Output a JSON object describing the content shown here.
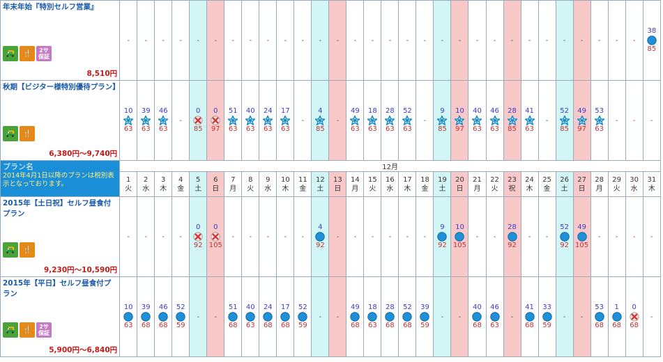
{
  "header": {
    "plan_col_title": "プラン名",
    "plan_col_note": "2014年4月1日以降のプランは税別表示となっております。",
    "month": "12月"
  },
  "days": [
    {
      "d": "1",
      "w": "火",
      "t": ""
    },
    {
      "d": "2",
      "w": "水",
      "t": ""
    },
    {
      "d": "3",
      "w": "木",
      "t": ""
    },
    {
      "d": "4",
      "w": "金",
      "t": ""
    },
    {
      "d": "5",
      "w": "土",
      "t": "sat"
    },
    {
      "d": "6",
      "w": "日",
      "t": "sun"
    },
    {
      "d": "7",
      "w": "月",
      "t": ""
    },
    {
      "d": "8",
      "w": "火",
      "t": ""
    },
    {
      "d": "9",
      "w": "水",
      "t": ""
    },
    {
      "d": "10",
      "w": "木",
      "t": ""
    },
    {
      "d": "11",
      "w": "金",
      "t": ""
    },
    {
      "d": "12",
      "w": "土",
      "t": "sat"
    },
    {
      "d": "13",
      "w": "日",
      "t": "sun"
    },
    {
      "d": "14",
      "w": "月",
      "t": ""
    },
    {
      "d": "15",
      "w": "火",
      "t": ""
    },
    {
      "d": "16",
      "w": "水",
      "t": ""
    },
    {
      "d": "17",
      "w": "木",
      "t": ""
    },
    {
      "d": "18",
      "w": "金",
      "t": ""
    },
    {
      "d": "19",
      "w": "土",
      "t": "sat"
    },
    {
      "d": "20",
      "w": "日",
      "t": "sun"
    },
    {
      "d": "21",
      "w": "月",
      "t": ""
    },
    {
      "d": "22",
      "w": "火",
      "t": ""
    },
    {
      "d": "23",
      "w": "祝",
      "t": "sun"
    },
    {
      "d": "24",
      "w": "木",
      "t": ""
    },
    {
      "d": "25",
      "w": "金",
      "t": ""
    },
    {
      "d": "26",
      "w": "土",
      "t": "sat"
    },
    {
      "d": "27",
      "w": "日",
      "t": "sun"
    },
    {
      "d": "28",
      "w": "月",
      "t": ""
    },
    {
      "d": "29",
      "w": "火",
      "t": ""
    },
    {
      "d": "30",
      "w": "水",
      "t": ""
    },
    {
      "d": "31",
      "w": "木",
      "t": ""
    }
  ],
  "icons": {
    "cart": "🛺",
    "meal": "🍴",
    "guarantee_line1": "2サ",
    "guarantee_line2": "保証"
  },
  "plans": [
    {
      "name": "年末年始『特別セルフ営業』",
      "price": "8,510円",
      "badges": [
        "cart",
        "meal",
        "guarantee"
      ],
      "cells": [
        {
          "s": "dash"
        },
        {
          "s": "dash"
        },
        {
          "s": "dash"
        },
        {
          "s": "dash"
        },
        {
          "s": "dash"
        },
        {
          "s": "dash"
        },
        {
          "s": "dash"
        },
        {
          "s": "dash"
        },
        {
          "s": "dash"
        },
        {
          "s": "dash"
        },
        {
          "s": "dash"
        },
        {
          "s": "dash"
        },
        {
          "s": "dash"
        },
        {
          "s": "dash"
        },
        {
          "s": "dash"
        },
        {
          "s": "dash"
        },
        {
          "s": "dash"
        },
        {
          "s": "dash"
        },
        {
          "s": "dash"
        },
        {
          "s": "dash"
        },
        {
          "s": "dash"
        },
        {
          "s": "dash"
        },
        {
          "s": "dash"
        },
        {
          "s": "dash"
        },
        {
          "s": "dash"
        },
        {
          "s": "dash"
        },
        {
          "s": "dash"
        },
        {
          "s": "dash"
        },
        {
          "s": "dash"
        },
        {
          "s": "dash"
        },
        {
          "s": "circle",
          "top": "38",
          "bot": "85"
        }
      ]
    },
    {
      "name": "秋期【ビジター様特別優待プラン】",
      "price": "6,380円～9,740円",
      "badges": [
        "cart",
        "meal"
      ],
      "cells": [
        {
          "s": "star",
          "top": "10",
          "bot": "63"
        },
        {
          "s": "star",
          "top": "39",
          "bot": "63"
        },
        {
          "s": "star",
          "top": "46",
          "bot": "63"
        },
        {
          "s": "dash"
        },
        {
          "s": "cross",
          "top": "0",
          "bot": "85"
        },
        {
          "s": "cross",
          "top": "0",
          "bot": "97"
        },
        {
          "s": "star",
          "top": "51",
          "bot": "63"
        },
        {
          "s": "star",
          "top": "40",
          "bot": "63"
        },
        {
          "s": "star",
          "top": "24",
          "bot": "63"
        },
        {
          "s": "star",
          "top": "17",
          "bot": "63"
        },
        {
          "s": "dash"
        },
        {
          "s": "star",
          "top": "4",
          "bot": "85"
        },
        {
          "s": "dash"
        },
        {
          "s": "star",
          "top": "49",
          "bot": "63"
        },
        {
          "s": "star",
          "top": "18",
          "bot": "63"
        },
        {
          "s": "star",
          "top": "28",
          "bot": "63"
        },
        {
          "s": "star",
          "top": "52",
          "bot": "63"
        },
        {
          "s": "dash"
        },
        {
          "s": "star",
          "top": "9",
          "bot": "85"
        },
        {
          "s": "star",
          "top": "10",
          "bot": "97"
        },
        {
          "s": "star",
          "top": "40",
          "bot": "63"
        },
        {
          "s": "star",
          "top": "46",
          "bot": "63"
        },
        {
          "s": "star",
          "top": "28",
          "bot": "85"
        },
        {
          "s": "star",
          "top": "41",
          "bot": "63"
        },
        {
          "s": "dash"
        },
        {
          "s": "star",
          "top": "52",
          "bot": "85"
        },
        {
          "s": "star",
          "top": "49",
          "bot": "97"
        },
        {
          "s": "star",
          "top": "53",
          "bot": "63"
        },
        {
          "s": "dash"
        },
        {
          "s": "dash"
        },
        {
          "s": "dash"
        }
      ]
    },
    {
      "name": "2015年【土日祝】セルフ昼食付プラン",
      "price": "9,230円～10,590円",
      "badges": [
        "cart",
        "meal"
      ],
      "cells": [
        {
          "s": "dash"
        },
        {
          "s": "dash"
        },
        {
          "s": "dash"
        },
        {
          "s": "dash"
        },
        {
          "s": "cross",
          "top": "0",
          "bot": "92"
        },
        {
          "s": "cross",
          "top": "0",
          "bot": "105"
        },
        {
          "s": "dash"
        },
        {
          "s": "dash"
        },
        {
          "s": "dash"
        },
        {
          "s": "dash"
        },
        {
          "s": "dash"
        },
        {
          "s": "circle",
          "top": "4",
          "bot": "92"
        },
        {
          "s": "dash"
        },
        {
          "s": "dash"
        },
        {
          "s": "dash"
        },
        {
          "s": "dash"
        },
        {
          "s": "dash"
        },
        {
          "s": "dash"
        },
        {
          "s": "circle",
          "top": "9",
          "bot": "92"
        },
        {
          "s": "circle",
          "top": "10",
          "bot": "105"
        },
        {
          "s": "dash"
        },
        {
          "s": "dash"
        },
        {
          "s": "circle",
          "top": "28",
          "bot": "92"
        },
        {
          "s": "dash"
        },
        {
          "s": "dash"
        },
        {
          "s": "circle",
          "top": "52",
          "bot": "92"
        },
        {
          "s": "circle",
          "top": "49",
          "bot": "105"
        },
        {
          "s": "dash"
        },
        {
          "s": "dash"
        },
        {
          "s": "dash"
        },
        {
          "s": "dash"
        }
      ]
    },
    {
      "name": "2015年【平日】セルフ昼食付プラン",
      "price": "5,900円～6,840円",
      "badges": [
        "cart",
        "meal",
        "guarantee"
      ],
      "cells": [
        {
          "s": "circle",
          "top": "10",
          "bot": "63"
        },
        {
          "s": "circle",
          "top": "39",
          "bot": "68"
        },
        {
          "s": "circle",
          "top": "46",
          "bot": "68"
        },
        {
          "s": "circle",
          "top": "52",
          "bot": "59"
        },
        {
          "s": "dash"
        },
        {
          "s": "dash"
        },
        {
          "s": "circle",
          "top": "51",
          "bot": "68"
        },
        {
          "s": "circle",
          "top": "40",
          "bot": "63"
        },
        {
          "s": "circle",
          "top": "24",
          "bot": "68"
        },
        {
          "s": "circle",
          "top": "17",
          "bot": "68"
        },
        {
          "s": "circle",
          "top": "52",
          "bot": "59"
        },
        {
          "s": "dash"
        },
        {
          "s": "dash"
        },
        {
          "s": "circle",
          "top": "49",
          "bot": "68"
        },
        {
          "s": "circle",
          "top": "18",
          "bot": "63"
        },
        {
          "s": "circle",
          "top": "28",
          "bot": "68"
        },
        {
          "s": "circle",
          "top": "52",
          "bot": "68"
        },
        {
          "s": "circle",
          "top": "39",
          "bot": "59"
        },
        {
          "s": "dash"
        },
        {
          "s": "dash"
        },
        {
          "s": "circle",
          "top": "40",
          "bot": "68"
        },
        {
          "s": "circle",
          "top": "46",
          "bot": "63"
        },
        {
          "s": "dash"
        },
        {
          "s": "circle",
          "top": "41",
          "bot": "68"
        },
        {
          "s": "circle",
          "top": "33",
          "bot": "59"
        },
        {
          "s": "dash"
        },
        {
          "s": "dash"
        },
        {
          "s": "circle",
          "top": "53",
          "bot": "68"
        },
        {
          "s": "circle",
          "top": "1",
          "bot": "68"
        },
        {
          "s": "cross",
          "top": "0",
          "bot": "68"
        },
        {
          "s": "dash"
        }
      ]
    }
  ],
  "dash_text": "-",
  "colors": {
    "circle": "#1e90d8",
    "star": "#1a8ec8",
    "cross": "#d03030"
  }
}
